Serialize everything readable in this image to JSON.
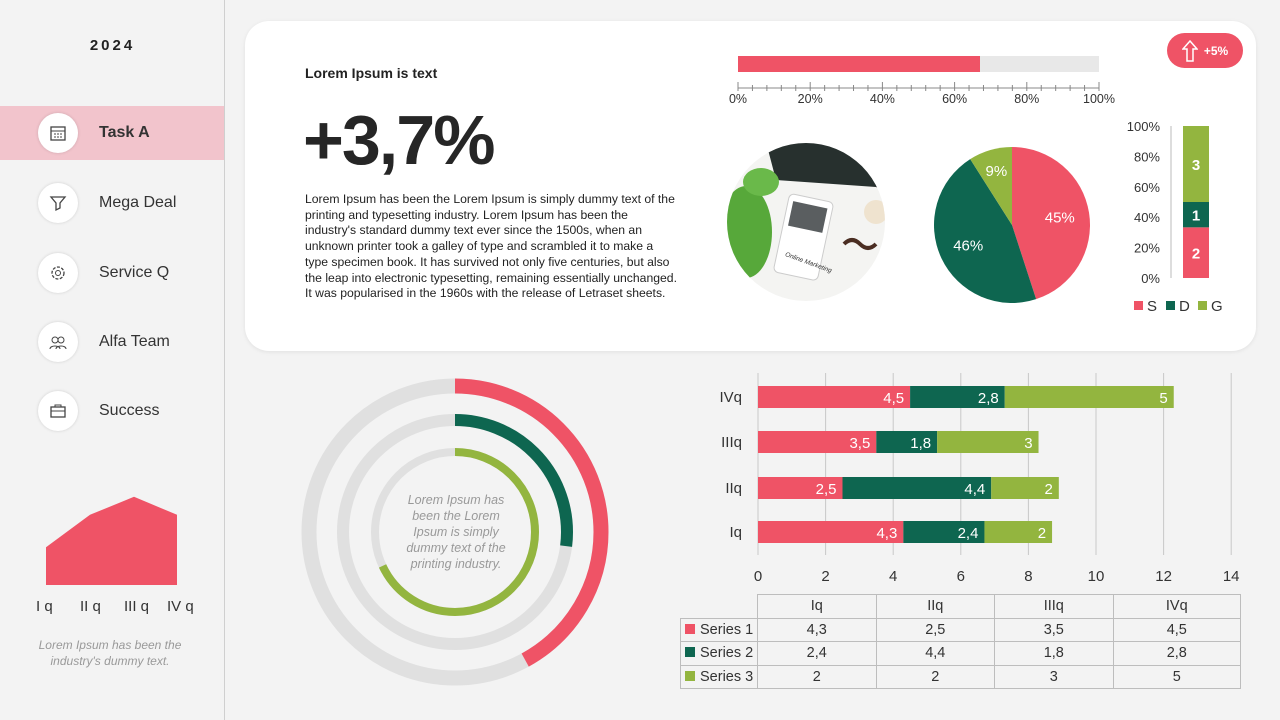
{
  "sidebar": {
    "year": "2024",
    "items": [
      {
        "label": "Task A",
        "icon": "calendar-icon",
        "active": true
      },
      {
        "label": "Mega Deal",
        "icon": "funnel-icon",
        "active": false
      },
      {
        "label": "Service Q",
        "icon": "gear-icon",
        "active": false
      },
      {
        "label": "Alfa Team",
        "icon": "team-icon",
        "active": false
      },
      {
        "label": "Success",
        "icon": "briefcase-icon",
        "active": false
      }
    ],
    "area_chart": {
      "type": "area",
      "categories": [
        "I q",
        "II q",
        "III q",
        "IV q"
      ],
      "values": [
        2.1,
        3.9,
        4.9,
        3.9
      ],
      "color": "#ef5366"
    },
    "footnote": "Lorem Ipsum has been the industry's dummy text."
  },
  "card": {
    "subtitle": "Lorem Ipsum is text",
    "big_value": "+3,7%",
    "paragraph": "Lorem Ipsum has been the Lorem Ipsum is simply dummy text of the printing and typesetting industry. Lorem Ipsum has been the industry's standard dummy text ever since the 1500s, when an unknown printer took a galley of type and scrambled it to make a type specimen book. It has survived not only five centuries, but also the leap into electronic typesetting, remaining essentially unchanged. It was popularised in the 1960s with the release of Letraset sheets.",
    "badge": {
      "label": "+5%",
      "icon": "arrow-up-icon"
    },
    "progress": {
      "value_pct": 67,
      "ticks": [
        "0%",
        "20%",
        "40%",
        "60%",
        "80%",
        "100%"
      ]
    },
    "photo_text": "Online Marketing"
  },
  "colors": {
    "red": "#ef5366",
    "dark_green": "#0e6650",
    "green": "#93b53f",
    "track": "#e0e0e0"
  },
  "chart_data": [
    {
      "type": "pie",
      "values": [
        45,
        46,
        9
      ],
      "labels": [
        "45%",
        "46%",
        "9%"
      ],
      "colors": [
        "#ef5366",
        "#0e6650",
        "#93b53f"
      ]
    },
    {
      "type": "bar",
      "stacked": "percent",
      "series": [
        {
          "name": "S",
          "value": 2
        },
        {
          "name": "D",
          "value": 1
        },
        {
          "name": "G",
          "value": 3
        }
      ],
      "yticks": [
        "0%",
        "20%",
        "40%",
        "60%",
        "80%",
        "100%"
      ],
      "legend": "bottom"
    },
    {
      "type": "donut",
      "values_pct": [
        42,
        27,
        68
      ],
      "text": "Lorem Ipsum has been the Lorem Ipsum is simply dummy text of the printing industry."
    },
    {
      "type": "bar",
      "orientation": "horizontal",
      "stacked": true,
      "categories": [
        "Iq",
        "IIq",
        "IIIq",
        "IVq"
      ],
      "series": [
        {
          "name": "Series 1",
          "values": [
            4.3,
            2.5,
            3.5,
            4.5
          ],
          "labels": [
            "4,3",
            "2,5",
            "3,5",
            "4,5"
          ]
        },
        {
          "name": "Series 2",
          "values": [
            2.4,
            4.4,
            1.8,
            2.8
          ],
          "labels": [
            "2,4",
            "4,4",
            "1,8",
            "2,8"
          ]
        },
        {
          "name": "Series 3",
          "values": [
            2,
            2,
            3,
            5
          ],
          "labels": [
            "2",
            "2",
            "3",
            "5"
          ]
        }
      ],
      "xlim": [
        0,
        14
      ],
      "xticks": [
        "0",
        "2",
        "4",
        "6",
        "8",
        "10",
        "12",
        "14"
      ],
      "grid": true
    }
  ]
}
